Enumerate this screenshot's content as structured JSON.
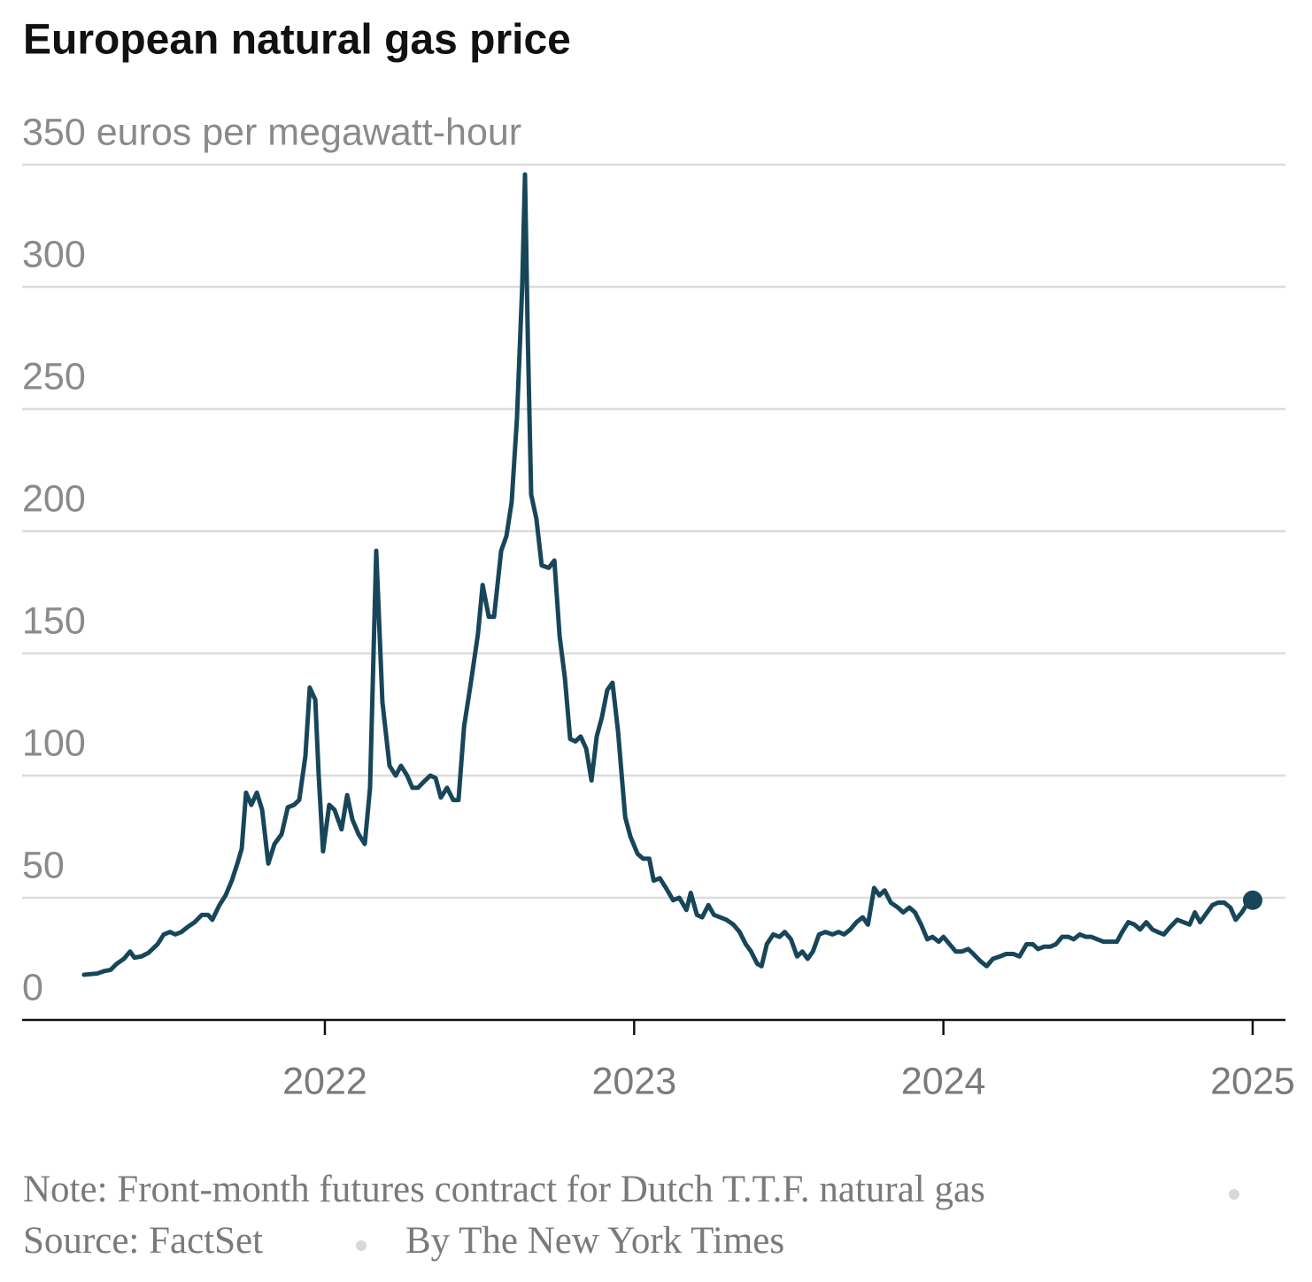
{
  "chart_data": {
    "type": "line",
    "title": "European natural gas price",
    "note": "Note: Front-month futures contract for Dutch T.T.F. natural gas",
    "source": "Source: FactSet",
    "credit": "By The New York Times",
    "color": "#17465a",
    "grid": true,
    "xlim": [
      2021.021,
      2025.106
    ],
    "xticks": [
      2022,
      2023,
      2024,
      2025
    ],
    "ylim": [
      0,
      350
    ],
    "yticks": [
      0,
      50,
      100,
      150,
      200,
      250,
      300,
      {
        "value": 350,
        "label": "350 euros per megawatt-hour"
      }
    ],
    "x": [
      2021.221,
      2021.264,
      2021.287,
      2021.307,
      2021.327,
      2021.35,
      2021.37,
      2021.384,
      2021.407,
      2021.43,
      2021.459,
      2021.479,
      2021.499,
      2021.516,
      2021.536,
      2021.556,
      2021.579,
      2021.602,
      2021.622,
      2021.636,
      2021.659,
      2021.679,
      2021.699,
      2021.717,
      2021.731,
      2021.745,
      2021.762,
      2021.78,
      2021.797,
      2021.817,
      2021.837,
      2021.86,
      2021.88,
      2021.9,
      2021.917,
      2021.937,
      2021.951,
      2021.969,
      2021.98,
      2021.994,
      2022.014,
      2022.031,
      2022.054,
      2022.072,
      2022.089,
      2022.109,
      2022.129,
      2022.146,
      2022.166,
      2022.186,
      2022.209,
      2022.229,
      2022.246,
      2022.266,
      2022.283,
      2022.301,
      2022.324,
      2022.341,
      2022.358,
      2022.375,
      2022.395,
      2022.415,
      2022.432,
      2022.45,
      2022.472,
      2022.495,
      2022.51,
      2022.53,
      2022.547,
      2022.57,
      2022.587,
      2022.604,
      2022.621,
      2022.638,
      2022.647,
      2022.656,
      2022.667,
      2022.684,
      2022.701,
      2022.724,
      2022.742,
      2022.759,
      2022.776,
      2022.793,
      2022.81,
      2022.827,
      2022.845,
      2022.862,
      2022.879,
      2022.896,
      2022.913,
      2022.93,
      2022.948,
      2022.971,
      2022.988,
      2023.011,
      2023.029,
      2023.049,
      2023.063,
      2023.083,
      2023.103,
      2023.126,
      2023.146,
      2023.169,
      2023.183,
      2023.203,
      2023.22,
      2023.24,
      2023.258,
      2023.278,
      2023.298,
      2023.321,
      2023.341,
      2023.361,
      2023.378,
      2023.398,
      2023.412,
      2023.429,
      2023.45,
      2023.47,
      2023.487,
      2023.507,
      2023.527,
      2023.544,
      2023.561,
      2023.578,
      2023.598,
      2023.618,
      2023.641,
      2023.661,
      2023.679,
      2023.699,
      2023.719,
      2023.739,
      2023.756,
      2023.776,
      2023.793,
      2023.81,
      2023.83,
      2023.853,
      2023.87,
      2023.89,
      2023.908,
      2023.928,
      2023.948,
      2023.965,
      2023.985,
      2024.0,
      2024.02,
      2024.04,
      2024.06,
      2024.08,
      2024.097,
      2024.12,
      2024.14,
      2024.16,
      2024.183,
      2024.203,
      2024.226,
      2024.246,
      2024.269,
      2024.289,
      2024.306,
      2024.326,
      2024.346,
      2024.364,
      2024.384,
      2024.404,
      2024.421,
      2024.441,
      2024.461,
      2024.478,
      2024.498,
      2024.518,
      2024.541,
      2024.561,
      2024.578,
      2024.598,
      2024.618,
      2024.636,
      2024.656,
      2024.676,
      2024.693,
      2024.713,
      2024.733,
      2024.756,
      2024.776,
      2024.796,
      2024.813,
      2024.83,
      2024.847,
      2024.87,
      2024.888,
      2024.908,
      2024.928,
      2024.945,
      2024.965,
      2024.985,
      2025.0
    ],
    "values": [
      18.5,
      19,
      20,
      20.5,
      23,
      25,
      28,
      25.5,
      26,
      27.5,
      31,
      35,
      36,
      35,
      36,
      38,
      40,
      43,
      43,
      41,
      47,
      51,
      57,
      64,
      70,
      93,
      88,
      93,
      86,
      64,
      72,
      76,
      87,
      88,
      90,
      108,
      136,
      131,
      100,
      69,
      88,
      86,
      78,
      92,
      82,
      76,
      72,
      95,
      192,
      130,
      104,
      100,
      104,
      100,
      95,
      95,
      98,
      100,
      99,
      91,
      95,
      90,
      90,
      120,
      138,
      158,
      178,
      165,
      165,
      192,
      198,
      212,
      246,
      300,
      346,
      280,
      215,
      205,
      186,
      185,
      188,
      157,
      140,
      115,
      114,
      116,
      111,
      98,
      116,
      124,
      135,
      138,
      118,
      83,
      75,
      68,
      66,
      66,
      57,
      58,
      54,
      49,
      50,
      45,
      52,
      43,
      42,
      47,
      43,
      42,
      41,
      39,
      36,
      31,
      28,
      23,
      22,
      31,
      35,
      34,
      36,
      33,
      26,
      28,
      25,
      28,
      35,
      36,
      35,
      36,
      35,
      37,
      40,
      42,
      39,
      54,
      51,
      53,
      48,
      46,
      44,
      46,
      44,
      39,
      33,
      34,
      32,
      34,
      31,
      28,
      28,
      29,
      27,
      24,
      22,
      25,
      26,
      27,
      27,
      26,
      31,
      31,
      29,
      30,
      30,
      31,
      34,
      34,
      33,
      35,
      34,
      34,
      33,
      32,
      32,
      32,
      36,
      40,
      39,
      37,
      40,
      37,
      36,
      35,
      38,
      41,
      40,
      39,
      44,
      40,
      43,
      47,
      48,
      48,
      46,
      41,
      44,
      48,
      49
    ]
  }
}
